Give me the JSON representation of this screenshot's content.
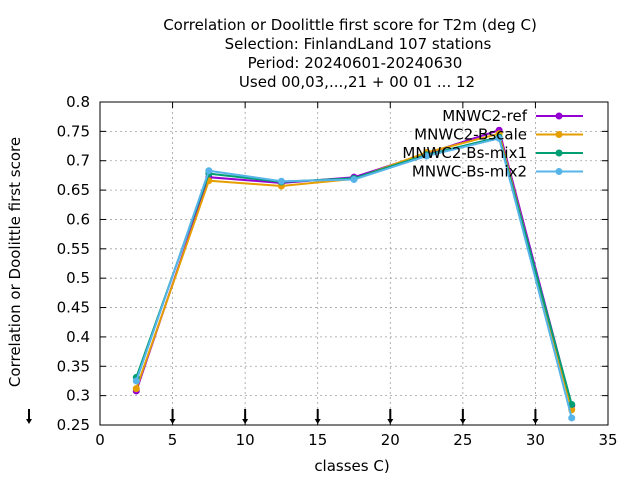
{
  "chart_data": {
    "type": "line",
    "title_lines": [
      "Correlation or Doolittle first score  for T2m (deg C)",
      "Selection: FinlandLand    107 stations",
      "Period: 20240601-20240630",
      "Used 00,03,...,21 + 00 01 ... 12"
    ],
    "xlabel": "classes C)",
    "ylabel": "Correlation or Doolittle first score",
    "xlim": [
      0,
      35
    ],
    "ylim": [
      0.25,
      0.8
    ],
    "xticks": [
      0,
      5,
      10,
      15,
      20,
      25,
      30,
      35
    ],
    "xtick_labels": [
      "0",
      "5",
      "10",
      "15",
      "20",
      "25",
      "30",
      "35"
    ],
    "yticks": [
      0.25,
      0.3,
      0.35,
      0.4,
      0.45,
      0.5,
      0.55,
      0.6,
      0.65,
      0.7,
      0.75,
      0.8
    ],
    "ytick_labels": [
      "0.25",
      "0.3",
      "0.35",
      "0.4",
      "0.45",
      "0.5",
      "0.55",
      "0.6",
      "0.65",
      "0.7",
      "0.75",
      "0.8"
    ],
    "grid": true,
    "legend_position": "top-right",
    "class_markers_x": [
      0,
      5,
      10,
      15,
      20,
      25,
      30
    ],
    "x": [
      2.5,
      7.5,
      12.5,
      17.5,
      22.5,
      27.5,
      32.5
    ],
    "series": [
      {
        "name": "MNWC2-ref",
        "color": "#9400d3",
        "values": [
          0.308,
          0.672,
          0.662,
          0.672,
          0.712,
          0.752,
          0.283
        ]
      },
      {
        "name": "MNWC2-Bscale",
        "color": "#e69f00",
        "values": [
          0.312,
          0.666,
          0.657,
          0.669,
          0.714,
          0.746,
          0.276
        ]
      },
      {
        "name": "MNWC2-Bs-mix1",
        "color": "#009e73",
        "values": [
          0.331,
          0.678,
          0.664,
          0.67,
          0.71,
          0.74,
          0.285
        ]
      },
      {
        "name": "MNWC-Bs-mix2",
        "color": "#56b4e9",
        "values": [
          0.325,
          0.683,
          0.665,
          0.668,
          0.708,
          0.738,
          0.262
        ]
      }
    ]
  }
}
